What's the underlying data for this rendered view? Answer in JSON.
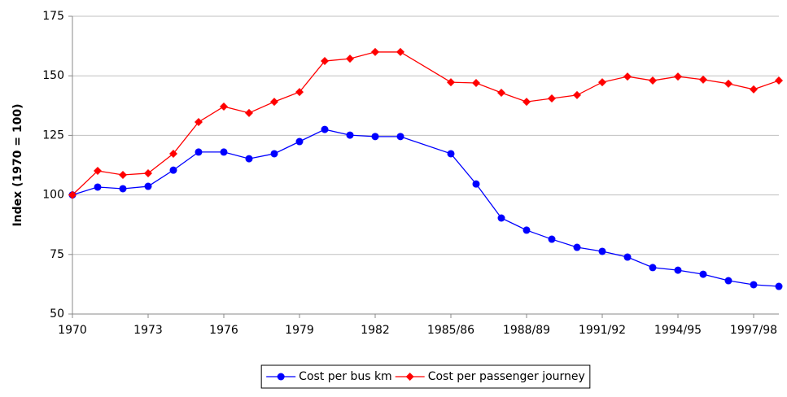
{
  "chart_data": {
    "type": "line",
    "y_label": "Index (1970 = 100)",
    "x": [
      1970,
      1971,
      1972,
      1973,
      1974,
      1975,
      1976,
      1977,
      1978,
      1979,
      1980,
      1981,
      1982,
      1983,
      1985,
      1986,
      1987,
      1988,
      1989,
      1990,
      1991,
      1992,
      1993,
      1994,
      1995,
      1996,
      1997,
      1998
    ],
    "series": [
      {
        "name": "Cost per bus km",
        "color": "#0000ff",
        "marker": "circle",
        "values": [
          100,
          103.3,
          102.6,
          103.6,
          110.4,
          118,
          118,
          115.2,
          117.3,
          122.4,
          127.5,
          125.1,
          124.5,
          124.5,
          117.3,
          104.6,
          90.3,
          85.2,
          81.4,
          78,
          76.3,
          73.9,
          69.5,
          68.4,
          66.7,
          64,
          62.3,
          61.6
        ]
      },
      {
        "name": "Cost per passenger journey",
        "color": "#ff0000",
        "marker": "diamond",
        "values": [
          100,
          110.1,
          108.4,
          109.1,
          117.3,
          130.6,
          137.1,
          134.4,
          139.1,
          143.2,
          156.2,
          157.2,
          160,
          160,
          147.3,
          147,
          142.9,
          139.1,
          140.5,
          141.9,
          147.3,
          149.7,
          148,
          149.7,
          148.4,
          146.7,
          144.3,
          148
        ]
      }
    ],
    "xlim": [
      1970,
      1998
    ],
    "xticks": [
      1970,
      1973,
      1976,
      1979,
      1982,
      {
        "value": 1985,
        "label": "1985/86"
      },
      {
        "value": 1988,
        "label": "1988/89"
      },
      {
        "value": 1991,
        "label": "1991/92"
      },
      {
        "value": 1994,
        "label": "1994/95"
      },
      {
        "value": 1997,
        "label": "1997/98"
      }
    ],
    "ylim": [
      50,
      175
    ],
    "yticks": [
      50,
      75,
      100,
      125,
      150,
      175
    ],
    "grid": true,
    "legend": "bottom"
  }
}
